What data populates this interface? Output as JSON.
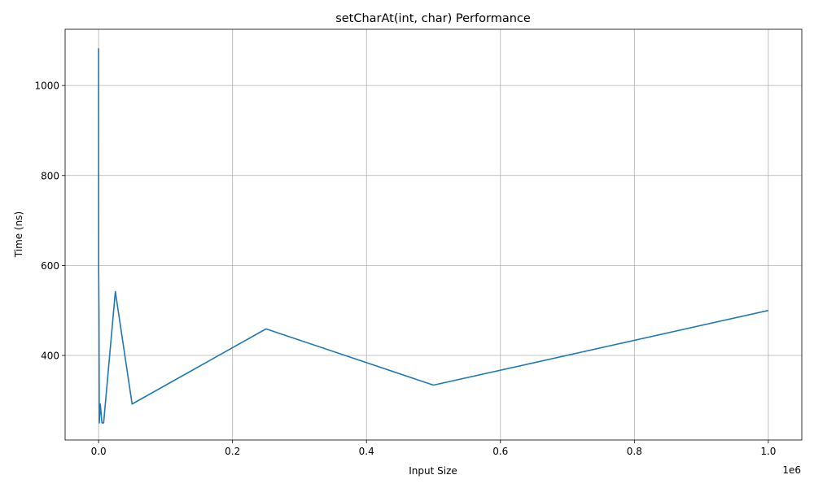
{
  "chart_data": {
    "type": "line",
    "title": "setCharAt(int, char) Performance",
    "xlabel": "Input Size",
    "ylabel": "Time (ns)",
    "x_offset_label": "1e6",
    "x_scale": 1000000,
    "xlim": [
      -50000,
      1050000
    ],
    "ylim": [
      212,
      1125
    ],
    "grid": true,
    "xticks": [
      0,
      200000,
      400000,
      600000,
      800000,
      1000000
    ],
    "xtick_labels": [
      "0.0",
      "0.2",
      "0.4",
      "0.6",
      "0.8",
      "1.0"
    ],
    "yticks": [
      400,
      600,
      800,
      1000
    ],
    "ytick_labels": [
      "400",
      "600",
      "800",
      "1000"
    ],
    "series": [
      {
        "color": "#1f77b4",
        "x": [
          10,
          50,
          100,
          500,
          1000,
          2500,
          5000,
          7500,
          25000,
          50000,
          250000,
          500000,
          1000000
        ],
        "y": [
          1083,
          800,
          585,
          500,
          250,
          292,
          250,
          250,
          542,
          292,
          459,
          334,
          500
        ]
      }
    ]
  }
}
